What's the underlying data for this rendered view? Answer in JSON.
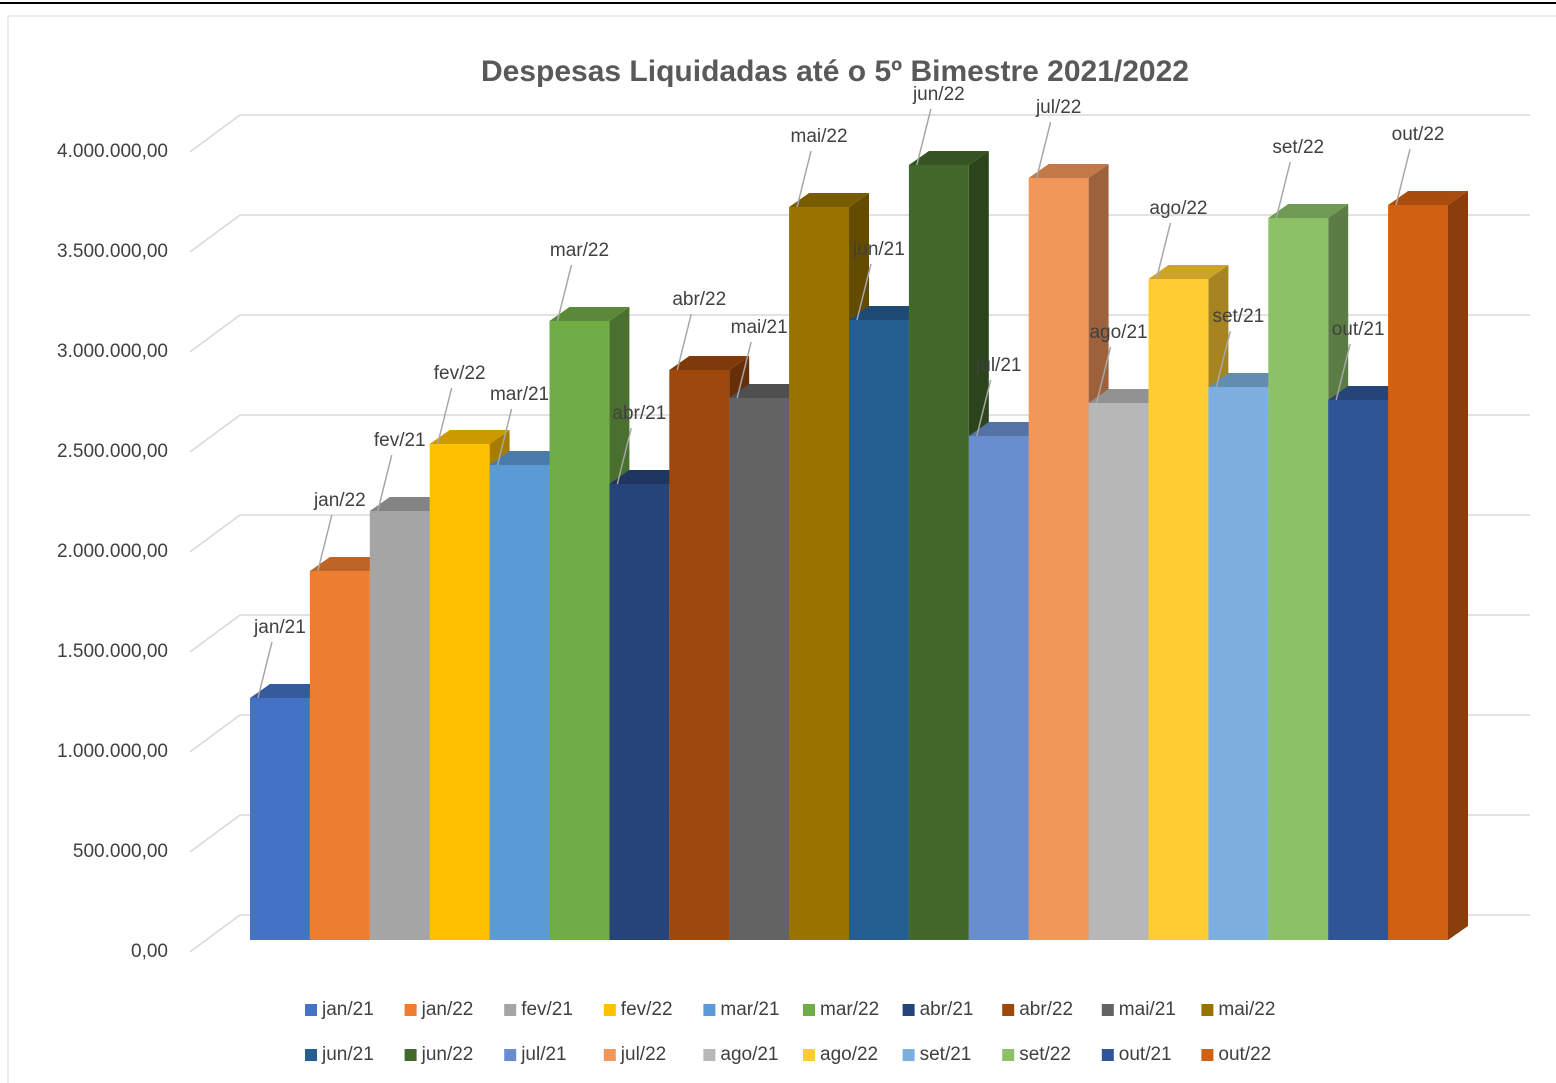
{
  "chart_data": {
    "type": "bar3d",
    "title": "Despesas Liquidadas até o 5º Bimestre 2021/2022",
    "ylim": [
      0,
      4000000
    ],
    "yticks": [
      {
        "value": 0,
        "label": "0,00"
      },
      {
        "value": 500000,
        "label": "500.000,00"
      },
      {
        "value": 1000000,
        "label": "1.000.000,00"
      },
      {
        "value": 1500000,
        "label": "1.500.000,00"
      },
      {
        "value": 2000000,
        "label": "2.000.000,00"
      },
      {
        "value": 2500000,
        "label": "2.500.000,00"
      },
      {
        "value": 3000000,
        "label": "3.000.000,00"
      },
      {
        "value": 3500000,
        "label": "3.500.000,00"
      },
      {
        "value": 4000000,
        "label": "4.000.000,00"
      }
    ],
    "grid": true,
    "legend": "bottom",
    "series": [
      {
        "name": "jan/21",
        "color": "#4472c4",
        "values": [
          1210000
        ]
      },
      {
        "name": "jan/22",
        "color": "#ed7d31",
        "values": [
          1845000
        ]
      },
      {
        "name": "fev/21",
        "color": "#a5a5a5",
        "values": [
          2145000
        ]
      },
      {
        "name": "fev/22",
        "color": "#ffc000",
        "values": [
          2480000
        ]
      },
      {
        "name": "mar/21",
        "color": "#5b9bd5",
        "values": [
          2375000
        ]
      },
      {
        "name": "mar/22",
        "color": "#70ad47",
        "values": [
          3095000
        ]
      },
      {
        "name": "abr/21",
        "color": "#264478",
        "values": [
          2280000
        ]
      },
      {
        "name": "abr/22",
        "color": "#9e480e",
        "values": [
          2850000
        ]
      },
      {
        "name": "mai/21",
        "color": "#636363",
        "values": [
          2710000
        ]
      },
      {
        "name": "mai/22",
        "color": "#997300",
        "values": [
          3665000
        ]
      },
      {
        "name": "jun/21",
        "color": "#255e91",
        "values": [
          3100000
        ]
      },
      {
        "name": "jun/22",
        "color": "#43682b",
        "values": [
          3875000
        ]
      },
      {
        "name": "jul/21",
        "color": "#698ed0",
        "values": [
          2520000
        ]
      },
      {
        "name": "jul/22",
        "color": "#f1975a",
        "values": [
          3810000
        ]
      },
      {
        "name": "ago/21",
        "color": "#b7b7b7",
        "values": [
          2685000
        ]
      },
      {
        "name": "ago/22",
        "color": "#ffcd33",
        "values": [
          3305000
        ]
      },
      {
        "name": "set/21",
        "color": "#7cafdd",
        "values": [
          2765000
        ]
      },
      {
        "name": "set/22",
        "color": "#8cc168",
        "values": [
          3610000
        ]
      },
      {
        "name": "out/21",
        "color": "#2f5597",
        "values": [
          2700000
        ]
      },
      {
        "name": "out/22",
        "color": "#d26012",
        "values": [
          3675000
        ]
      }
    ]
  }
}
